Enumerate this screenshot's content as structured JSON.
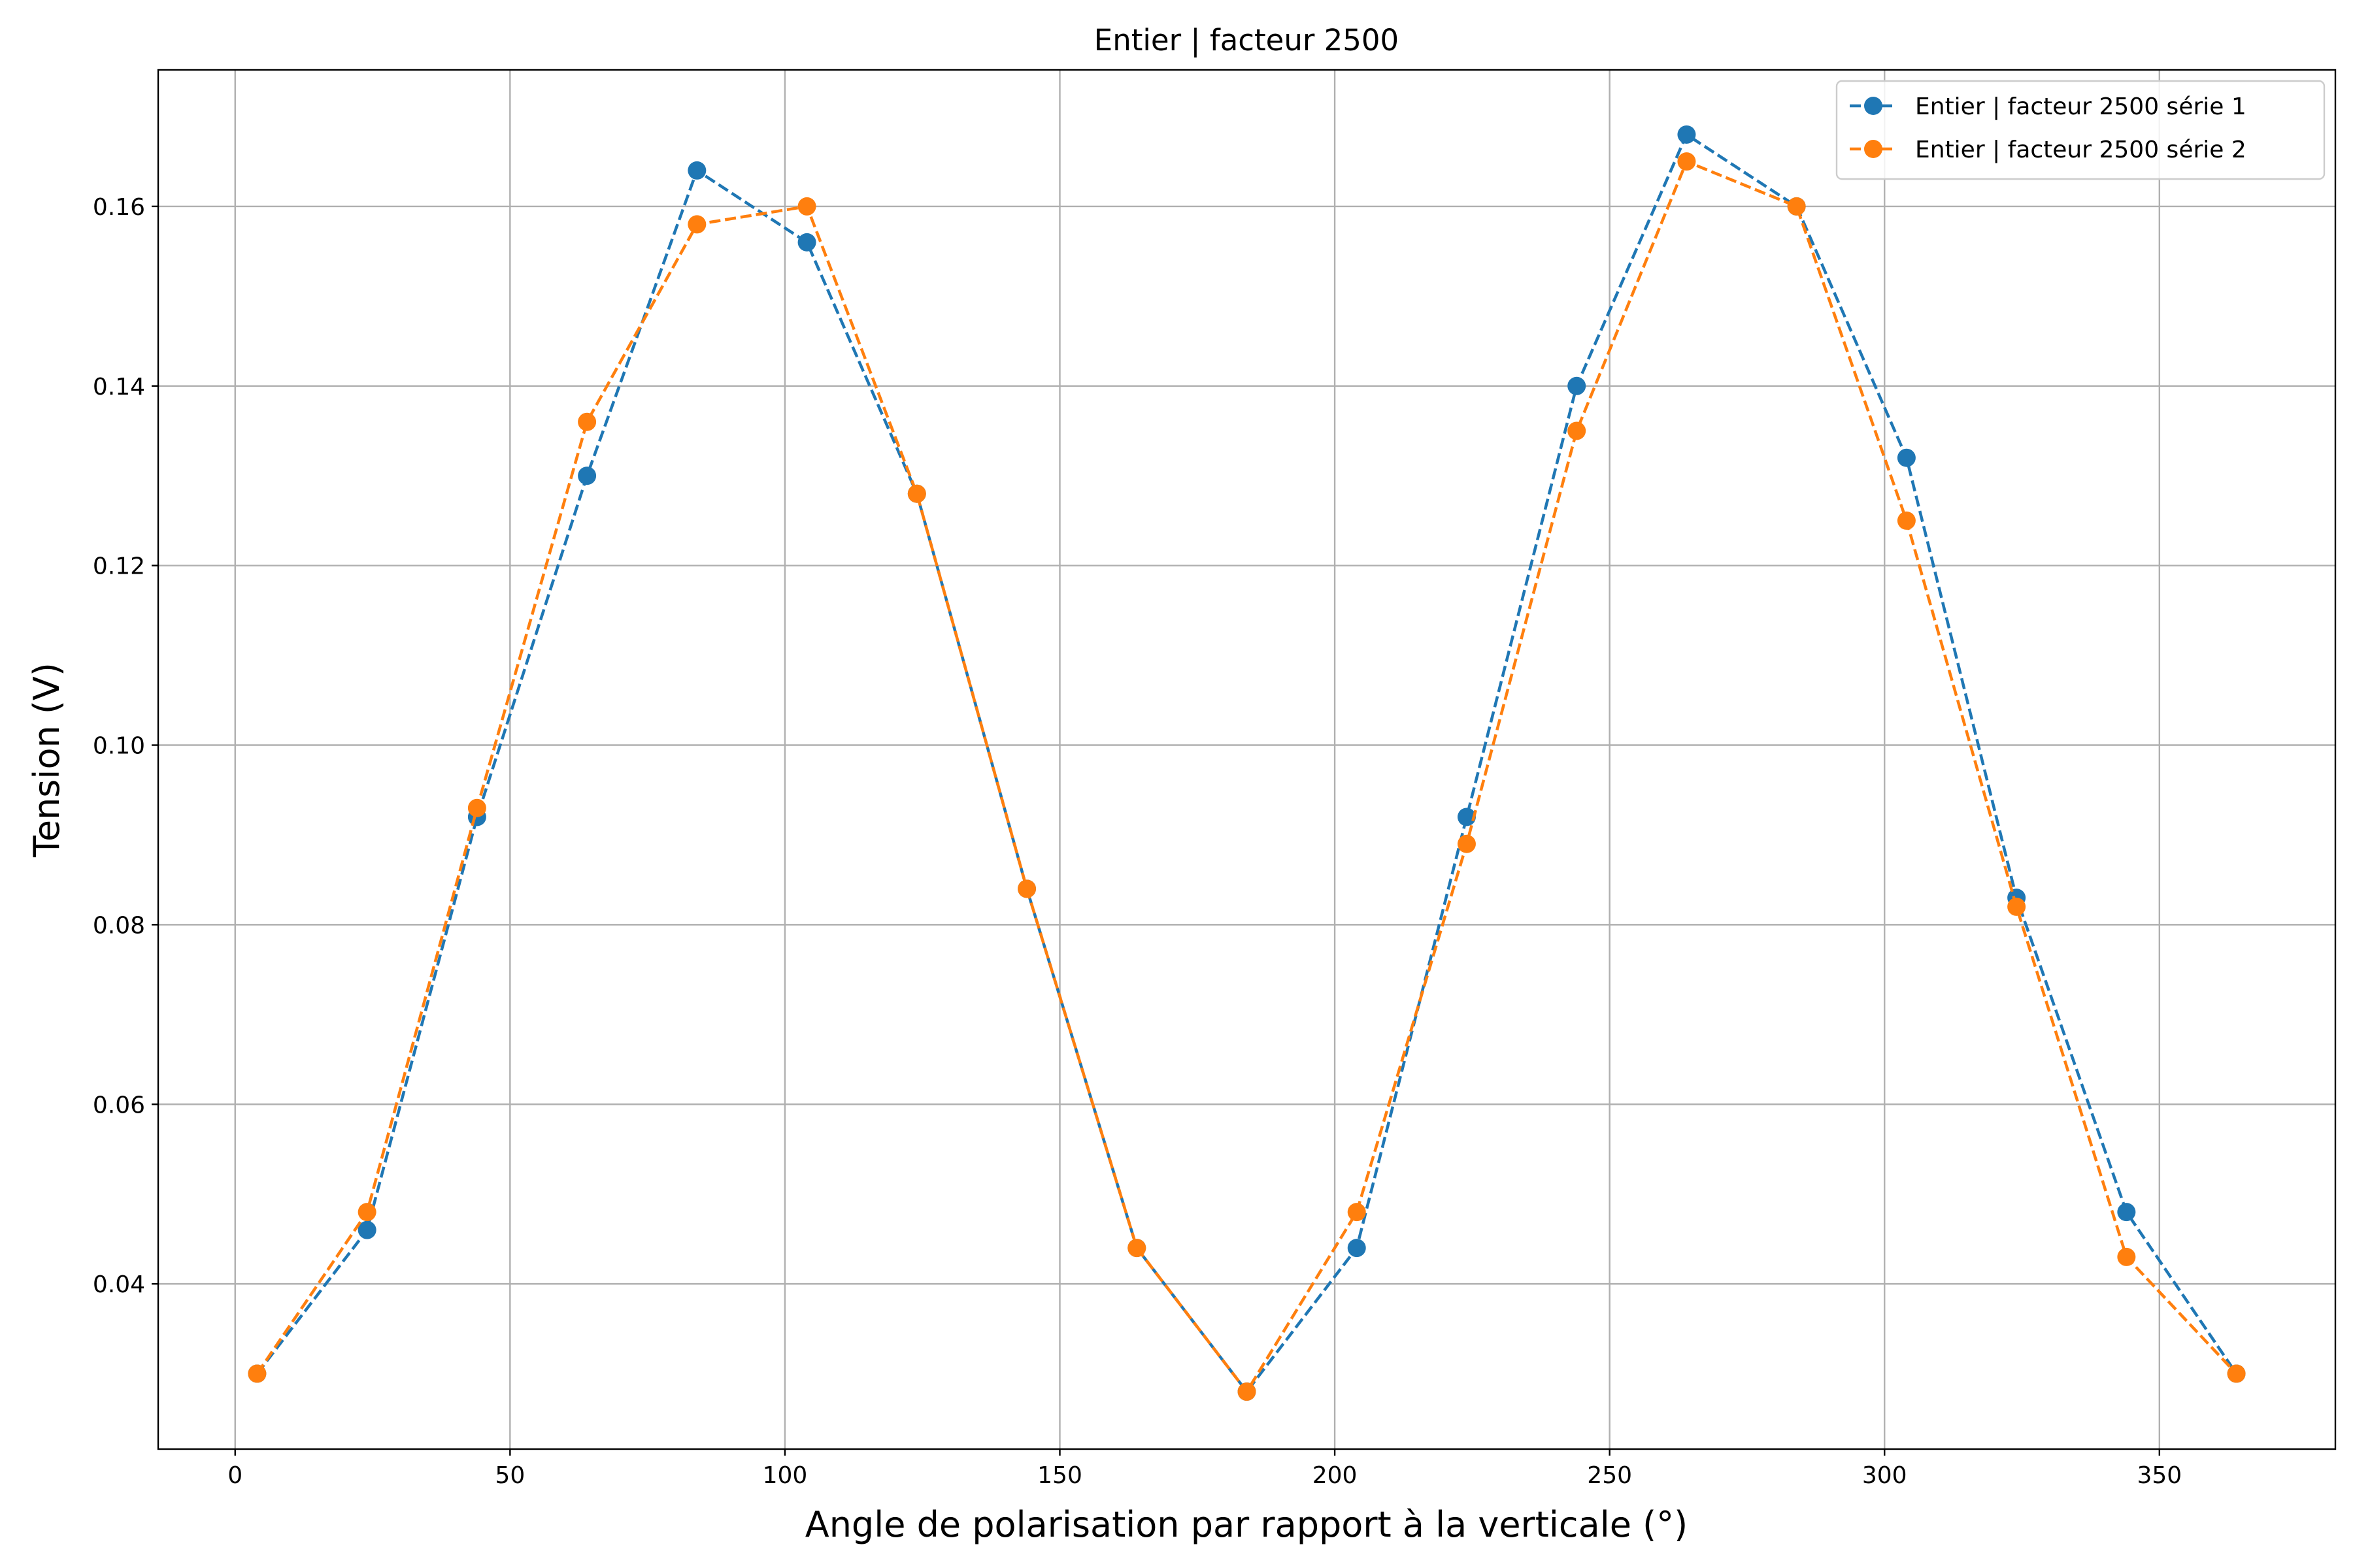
{
  "chart_data": {
    "type": "line",
    "title": "Entier | facteur 2500",
    "xlabel": "Angle de polarisation par rapport à la verticale (°)",
    "ylabel": "Tension (V)",
    "xlim": [
      -14,
      382
    ],
    "ylim": [
      0.0216,
      0.1752
    ],
    "xticks": [
      0,
      50,
      100,
      150,
      200,
      250,
      300,
      350
    ],
    "xtick_labels": [
      "0",
      "50",
      "100",
      "150",
      "200",
      "250",
      "300",
      "350"
    ],
    "yticks": [
      0.04,
      0.06,
      0.08,
      0.1,
      0.12,
      0.14,
      0.16
    ],
    "ytick_labels": [
      "0.04",
      "0.06",
      "0.08",
      "0.10",
      "0.12",
      "0.14",
      "0.16"
    ],
    "grid": true,
    "legend_position": "upper right",
    "x": [
      4,
      24,
      44,
      64,
      84,
      104,
      124,
      144,
      164,
      184,
      204,
      224,
      244,
      264,
      284,
      304,
      324,
      344,
      364
    ],
    "series": [
      {
        "name": "Entier | facteur 2500 série 1",
        "color": "#1f77b4",
        "line_style": "dashed",
        "marker": "circle",
        "values": [
          0.03,
          0.046,
          0.092,
          0.13,
          0.164,
          0.156,
          0.128,
          0.084,
          0.044,
          0.028,
          0.044,
          0.092,
          0.14,
          0.168,
          0.16,
          0.132,
          0.083,
          0.048,
          0.03
        ]
      },
      {
        "name": "Entier | facteur 2500 série 2",
        "color": "#ff7f0e",
        "line_style": "dashed",
        "marker": "circle",
        "values": [
          0.03,
          0.048,
          0.093,
          0.136,
          0.158,
          0.16,
          0.128,
          0.084,
          0.044,
          0.028,
          0.048,
          0.089,
          0.135,
          0.165,
          0.16,
          0.125,
          0.082,
          0.043,
          0.03
        ]
      }
    ]
  }
}
